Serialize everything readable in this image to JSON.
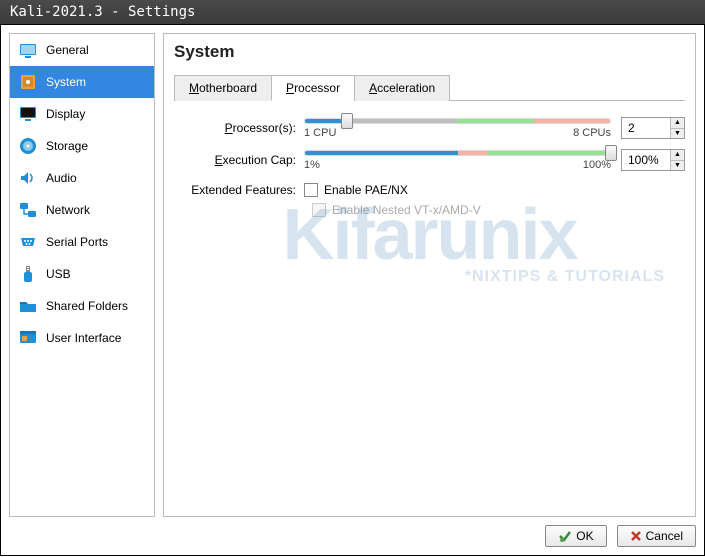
{
  "window": {
    "title": "Kali-2021.3 - Settings"
  },
  "sidebar": {
    "items": [
      {
        "label": "General",
        "icon": "general",
        "selected": false
      },
      {
        "label": "System",
        "icon": "system",
        "selected": true
      },
      {
        "label": "Display",
        "icon": "display",
        "selected": false
      },
      {
        "label": "Storage",
        "icon": "storage",
        "selected": false
      },
      {
        "label": "Audio",
        "icon": "audio",
        "selected": false
      },
      {
        "label": "Network",
        "icon": "network",
        "selected": false
      },
      {
        "label": "Serial Ports",
        "icon": "serial",
        "selected": false
      },
      {
        "label": "USB",
        "icon": "usb",
        "selected": false
      },
      {
        "label": "Shared Folders",
        "icon": "shared",
        "selected": false
      },
      {
        "label": "User Interface",
        "icon": "ui",
        "selected": false
      }
    ]
  },
  "page": {
    "title": "System",
    "tabs": [
      {
        "label": "Motherboard",
        "underline": 0,
        "active": false
      },
      {
        "label": "Processor",
        "underline": 0,
        "active": true
      },
      {
        "label": "Acceleration",
        "underline": 0,
        "active": false
      }
    ]
  },
  "processors": {
    "label": "Processor(s):",
    "label_underline": 0,
    "value": "2",
    "min_label": "1 CPU",
    "max_label": "8 CPUs",
    "handle_pos_pct": 14,
    "segments": [
      {
        "color": "#2f8fd3",
        "pct": 14
      },
      {
        "color": "#bfbfbf",
        "pct": 36
      },
      {
        "color": "#96e296",
        "pct": 25
      },
      {
        "color": "#f4b3a5",
        "pct": 25
      }
    ]
  },
  "execcap": {
    "label": "Execution Cap:",
    "label_underline": 0,
    "value": "100%",
    "min_label": "1%",
    "max_label": "100%",
    "handle_pos_pct": 100,
    "segments": [
      {
        "color": "#2f8fd3",
        "pct": 50
      },
      {
        "color": "#f4b3a5",
        "pct": 10
      },
      {
        "color": "#96e296",
        "pct": 40
      }
    ]
  },
  "features": {
    "label": "Extended Features:",
    "paenx": {
      "label": "Enable PAE/NX",
      "checked": false,
      "disabled": false
    },
    "nested": {
      "label": "Enable Nested VT-x/AMD-V",
      "checked": false,
      "disabled": true
    }
  },
  "footer": {
    "ok": "OK",
    "cancel": "Cancel"
  },
  "watermark": {
    "big": "Kifarunix",
    "sub": "*NIXTIPS & TUTORIALS"
  },
  "colors": {
    "selection": "#3487e0",
    "icon_blue": "#1e90d8",
    "icon_orange": "#e8a33d"
  }
}
